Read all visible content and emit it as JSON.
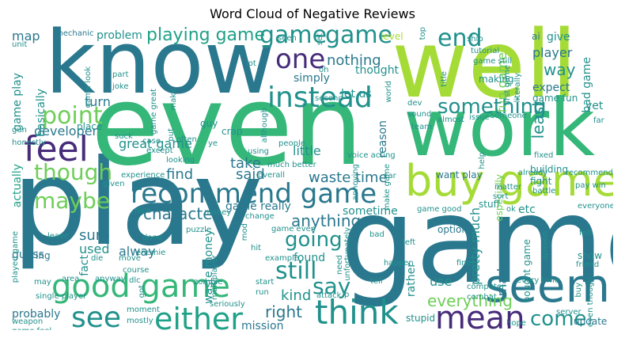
{
  "title": "Word Cloud of Negative Reviews",
  "colors": {
    "dark_purple": "#3b1b5a",
    "purple": "#472c7a",
    "indigo": "#3b528b",
    "slate_blue": "#365c8d",
    "blue": "#31688e",
    "teal_blue": "#2a788e",
    "teal": "#21918c",
    "green_teal": "#1fa187",
    "green": "#35b779",
    "light_green": "#6ece58",
    "yellow_green": "#a5db36",
    "lime": "#c6e22a"
  },
  "words": [
    {
      "text": "play"
    },
    {
      "text": "game"
    },
    {
      "text": "even"
    },
    {
      "text": "know"
    },
    {
      "text": "well"
    },
    {
      "text": "work"
    },
    {
      "text": "buy game"
    },
    {
      "text": "seem"
    },
    {
      "text": "recommend game"
    },
    {
      "text": "instead"
    },
    {
      "text": "think"
    },
    {
      "text": "either"
    },
    {
      "text": "good game"
    },
    {
      "text": "feel"
    },
    {
      "text": "mean"
    },
    {
      "text": "see"
    },
    {
      "text": "one"
    },
    {
      "text": "something"
    },
    {
      "text": "point"
    },
    {
      "text": "though"
    },
    {
      "text": "maybe"
    },
    {
      "text": "still"
    },
    {
      "text": "going"
    },
    {
      "text": "say"
    },
    {
      "text": "end"
    },
    {
      "text": "come"
    },
    {
      "text": "game"
    },
    {
      "text": "game"
    },
    {
      "text": "playing game"
    },
    {
      "text": "way"
    },
    {
      "text": "everything"
    },
    {
      "text": "least"
    },
    {
      "text": "character"
    },
    {
      "text": "anything"
    },
    {
      "text": "kind"
    },
    {
      "text": "right"
    },
    {
      "text": "nothing"
    },
    {
      "text": "fun game"
    },
    {
      "text": "player"
    },
    {
      "text": "pretty much"
    },
    {
      "text": "waste time"
    },
    {
      "text": "take"
    },
    {
      "text": "said"
    },
    {
      "text": "find"
    },
    {
      "text": "sure"
    },
    {
      "text": "used"
    },
    {
      "text": "alway"
    },
    {
      "text": "great game"
    },
    {
      "text": "developer"
    },
    {
      "text": "turn"
    },
    {
      "text": "little"
    },
    {
      "text": "made"
    },
    {
      "text": "use"
    },
    {
      "text": "let us"
    },
    {
      "text": "thought"
    },
    {
      "text": "problem"
    },
    {
      "text": "map"
    },
    {
      "text": "game play"
    },
    {
      "text": "basically"
    },
    {
      "text": "probably"
    },
    {
      "text": "mission"
    },
    {
      "text": "actually"
    },
    {
      "text": "fact"
    },
    {
      "text": "game really"
    },
    {
      "text": "waste money"
    },
    {
      "text": "found"
    },
    {
      "text": "rather"
    },
    {
      "text": "sometime"
    },
    {
      "text": "reason"
    },
    {
      "text": "guess"
    },
    {
      "text": "etc"
    },
    {
      "text": "give"
    },
    {
      "text": "expect"
    },
    {
      "text": "yet"
    },
    {
      "text": "bad game"
    },
    {
      "text": "level"
    },
    {
      "text": "simply"
    },
    {
      "text": "want play"
    },
    {
      "text": "stuff"
    },
    {
      "text": "option"
    },
    {
      "text": "game fun"
    },
    {
      "text": "bought game"
    },
    {
      "text": "update"
    },
    {
      "text": "item"
    },
    {
      "text": "mechanic"
    },
    {
      "text": "unit"
    },
    {
      "text": "game look"
    },
    {
      "text": "part"
    },
    {
      "text": "joke"
    },
    {
      "text": "game great"
    },
    {
      "text": "make"
    },
    {
      "text": "oh"
    },
    {
      "text": "lot"
    },
    {
      "text": "seen"
    },
    {
      "text": "set"
    },
    {
      "text": "top"
    },
    {
      "text": "ship"
    },
    {
      "text": "tutorial"
    },
    {
      "text": "game still"
    },
    {
      "text": "first game"
    },
    {
      "text": "literally"
    },
    {
      "text": "ai"
    },
    {
      "text": "making"
    },
    {
      "text": "title"
    },
    {
      "text": "world"
    },
    {
      "text": "dev"
    },
    {
      "text": "sound"
    },
    {
      "text": "almost"
    },
    {
      "text": "issue"
    },
    {
      "text": "someone"
    },
    {
      "text": "second"
    },
    {
      "text": "team"
    },
    {
      "text": "although"
    },
    {
      "text": "crap"
    },
    {
      "text": "guy"
    },
    {
      "text": "place"
    },
    {
      "text": "suck"
    },
    {
      "text": "case"
    },
    {
      "text": "put"
    },
    {
      "text": "gun"
    },
    {
      "text": "honestly"
    },
    {
      "text": "often"
    },
    {
      "text": "ye"
    },
    {
      "text": "people"
    },
    {
      "text": "much better"
    },
    {
      "text": "voice acting"
    },
    {
      "text": "annoying"
    },
    {
      "text": "make game"
    },
    {
      "text": "help"
    },
    {
      "text": "especially"
    },
    {
      "text": "fixed"
    },
    {
      "text": "building"
    },
    {
      "text": "fight"
    },
    {
      "text": "battle"
    },
    {
      "text": "recommend"
    },
    {
      "text": "pay win"
    },
    {
      "text": "far"
    },
    {
      "text": "using"
    },
    {
      "text": "except"
    },
    {
      "text": "looking"
    },
    {
      "text": "experience"
    },
    {
      "text": "overall"
    },
    {
      "text": "car"
    },
    {
      "text": "matter"
    },
    {
      "text": "already"
    },
    {
      "text": "sort"
    },
    {
      "text": "game good"
    },
    {
      "text": "server"
    },
    {
      "text": "everyone"
    },
    {
      "text": "given"
    },
    {
      "text": "nice"
    },
    {
      "text": "ok"
    },
    {
      "text": "change"
    },
    {
      "text": "mod"
    },
    {
      "text": "game even"
    },
    {
      "text": "puzzle"
    },
    {
      "text": "done"
    },
    {
      "text": "leave"
    },
    {
      "text": "enemie"
    },
    {
      "text": "hit"
    },
    {
      "text": "unfortunately"
    },
    {
      "text": "bad"
    },
    {
      "text": "left"
    },
    {
      "text": "felt"
    },
    {
      "text": "opinion"
    },
    {
      "text": "show"
    },
    {
      "text": "friend"
    },
    {
      "text": "ing"
    },
    {
      "text": "die"
    },
    {
      "text": "move"
    },
    {
      "text": "course"
    },
    {
      "text": "example"
    },
    {
      "text": "multiplayer"
    },
    {
      "text": "need"
    },
    {
      "text": "happen"
    },
    {
      "text": "fine"
    },
    {
      "text": "every time"
    },
    {
      "text": "even though"
    },
    {
      "text": "buy"
    },
    {
      "text": "played game"
    },
    {
      "text": "may"
    },
    {
      "text": "area"
    },
    {
      "text": "anyway"
    },
    {
      "text": "dlc"
    },
    {
      "text": "zombie"
    },
    {
      "text": "start"
    },
    {
      "text": "tell"
    },
    {
      "text": "computer"
    },
    {
      "text": "combat"
    },
    {
      "text": "single player"
    },
    {
      "text": "got"
    },
    {
      "text": "run"
    },
    {
      "text": "attack"
    },
    {
      "text": "p"
    },
    {
      "text": "seriously"
    },
    {
      "text": "weapon"
    },
    {
      "text": "game feel"
    },
    {
      "text": "moment"
    },
    {
      "text": "mostly"
    },
    {
      "text": "stupid"
    },
    {
      "text": "hope"
    },
    {
      "text": "money"
    }
  ]
}
